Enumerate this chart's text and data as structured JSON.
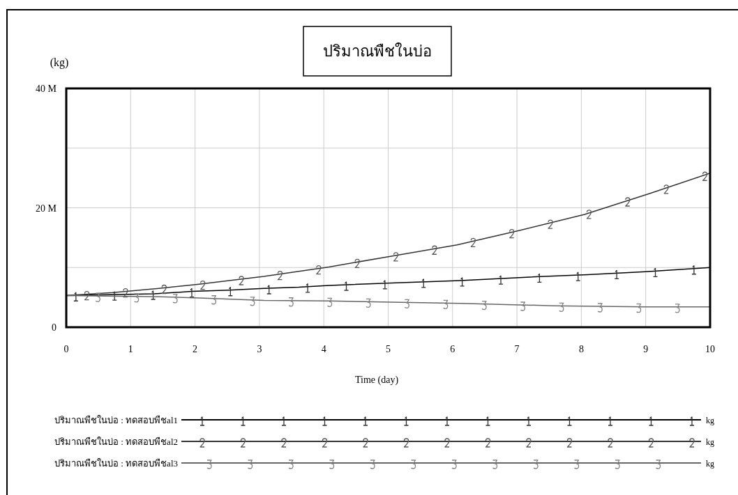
{
  "chart_data": {
    "type": "line",
    "title": "ปริมาณพืชในบ่อ",
    "xlabel": "Time (day)",
    "ylabel": "(kg)",
    "xlim": [
      0,
      10
    ],
    "xticks": [
      0,
      1,
      2,
      3,
      4,
      5,
      6,
      7,
      8,
      9,
      10
    ],
    "ylim": [
      0,
      40000000
    ],
    "yticks": [
      {
        "value": 0,
        "label": "0"
      },
      {
        "value": 10000000,
        "label": null
      },
      {
        "value": 20000000,
        "label": "20 M"
      },
      {
        "value": 30000000,
        "label": null
      },
      {
        "value": 40000000,
        "label": "40 M"
      }
    ],
    "grid": true,
    "legend": "bottom",
    "line_style": "solid",
    "annotations": [
      "kg",
      "kg",
      "kg"
    ],
    "series": [
      {
        "name": "ปริมาณพืชในบ่อ : ทดสอบพืชal1",
        "color": "#000000",
        "x": [
          0,
          1.37,
          1.95,
          2.53,
          3.07,
          3.61,
          4.08,
          5.05,
          6.12,
          7.2,
          8.1,
          9.0,
          10
        ],
        "values": [
          5300000,
          5600000,
          6000000,
          6200000,
          6500000,
          6700000,
          7000000,
          7400000,
          7800000,
          8400000,
          8800000,
          9300000,
          10000000
        ]
      },
      {
        "name": "ปริมาณพืชในบ่อ : ทดสอบพืชal2",
        "color": "#333333",
        "x": [
          0,
          0.72,
          1.44,
          2.06,
          3.07,
          4.08,
          5.05,
          6.07,
          7.04,
          8.05,
          9.06,
          10
        ],
        "values": [
          5300000,
          5800000,
          6500000,
          7200000,
          8500000,
          10100000,
          11900000,
          13800000,
          16200000,
          18900000,
          22400000,
          25800000
        ]
      },
      {
        "name": "ปริมาณพืชในบ่อ : ทดสอบพืชal3",
        "color": "#666666",
        "x": [
          0,
          1.44,
          2.06,
          3.07,
          4.08,
          5.05,
          6.12,
          7.56,
          9.0,
          10
        ],
        "values": [
          5300000,
          5100000,
          4900000,
          4500000,
          4400000,
          4200000,
          4000000,
          3600000,
          3400000,
          3400000
        ]
      }
    ]
  }
}
